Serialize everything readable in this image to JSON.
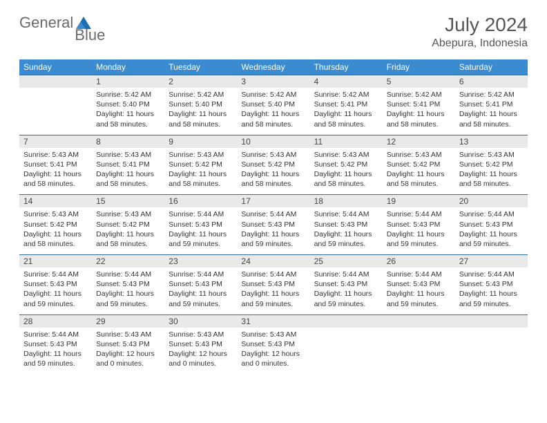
{
  "brand": {
    "word1": "General",
    "word2": "Blue"
  },
  "title": "July 2024",
  "location": "Abepura, Indonesia",
  "colors": {
    "header_bg": "#3a8bd0",
    "header_text": "#ffffff",
    "daynum_bg": "#e9e9e9",
    "row_border": "#2f6aa0",
    "text": "#333333",
    "title_text": "#555555",
    "logo_text": "#6a6a6a",
    "logo_mark": "#1f6fb0"
  },
  "day_headers": [
    "Sunday",
    "Monday",
    "Tuesday",
    "Wednesday",
    "Thursday",
    "Friday",
    "Saturday"
  ],
  "weeks": [
    {
      "cells": [
        {
          "blank": true
        },
        {
          "num": "1",
          "sunrise": "Sunrise: 5:42 AM",
          "sunset": "Sunset: 5:40 PM",
          "daylight": "Daylight: 11 hours and 58 minutes."
        },
        {
          "num": "2",
          "sunrise": "Sunrise: 5:42 AM",
          "sunset": "Sunset: 5:40 PM",
          "daylight": "Daylight: 11 hours and 58 minutes."
        },
        {
          "num": "3",
          "sunrise": "Sunrise: 5:42 AM",
          "sunset": "Sunset: 5:40 PM",
          "daylight": "Daylight: 11 hours and 58 minutes."
        },
        {
          "num": "4",
          "sunrise": "Sunrise: 5:42 AM",
          "sunset": "Sunset: 5:41 PM",
          "daylight": "Daylight: 11 hours and 58 minutes."
        },
        {
          "num": "5",
          "sunrise": "Sunrise: 5:42 AM",
          "sunset": "Sunset: 5:41 PM",
          "daylight": "Daylight: 11 hours and 58 minutes."
        },
        {
          "num": "6",
          "sunrise": "Sunrise: 5:42 AM",
          "sunset": "Sunset: 5:41 PM",
          "daylight": "Daylight: 11 hours and 58 minutes."
        }
      ]
    },
    {
      "cells": [
        {
          "num": "7",
          "sunrise": "Sunrise: 5:43 AM",
          "sunset": "Sunset: 5:41 PM",
          "daylight": "Daylight: 11 hours and 58 minutes."
        },
        {
          "num": "8",
          "sunrise": "Sunrise: 5:43 AM",
          "sunset": "Sunset: 5:41 PM",
          "daylight": "Daylight: 11 hours and 58 minutes."
        },
        {
          "num": "9",
          "sunrise": "Sunrise: 5:43 AM",
          "sunset": "Sunset: 5:42 PM",
          "daylight": "Daylight: 11 hours and 58 minutes."
        },
        {
          "num": "10",
          "sunrise": "Sunrise: 5:43 AM",
          "sunset": "Sunset: 5:42 PM",
          "daylight": "Daylight: 11 hours and 58 minutes."
        },
        {
          "num": "11",
          "sunrise": "Sunrise: 5:43 AM",
          "sunset": "Sunset: 5:42 PM",
          "daylight": "Daylight: 11 hours and 58 minutes."
        },
        {
          "num": "12",
          "sunrise": "Sunrise: 5:43 AM",
          "sunset": "Sunset: 5:42 PM",
          "daylight": "Daylight: 11 hours and 58 minutes."
        },
        {
          "num": "13",
          "sunrise": "Sunrise: 5:43 AM",
          "sunset": "Sunset: 5:42 PM",
          "daylight": "Daylight: 11 hours and 58 minutes."
        }
      ]
    },
    {
      "cells": [
        {
          "num": "14",
          "sunrise": "Sunrise: 5:43 AM",
          "sunset": "Sunset: 5:42 PM",
          "daylight": "Daylight: 11 hours and 58 minutes."
        },
        {
          "num": "15",
          "sunrise": "Sunrise: 5:43 AM",
          "sunset": "Sunset: 5:42 PM",
          "daylight": "Daylight: 11 hours and 58 minutes."
        },
        {
          "num": "16",
          "sunrise": "Sunrise: 5:44 AM",
          "sunset": "Sunset: 5:43 PM",
          "daylight": "Daylight: 11 hours and 59 minutes."
        },
        {
          "num": "17",
          "sunrise": "Sunrise: 5:44 AM",
          "sunset": "Sunset: 5:43 PM",
          "daylight": "Daylight: 11 hours and 59 minutes."
        },
        {
          "num": "18",
          "sunrise": "Sunrise: 5:44 AM",
          "sunset": "Sunset: 5:43 PM",
          "daylight": "Daylight: 11 hours and 59 minutes."
        },
        {
          "num": "19",
          "sunrise": "Sunrise: 5:44 AM",
          "sunset": "Sunset: 5:43 PM",
          "daylight": "Daylight: 11 hours and 59 minutes."
        },
        {
          "num": "20",
          "sunrise": "Sunrise: 5:44 AM",
          "sunset": "Sunset: 5:43 PM",
          "daylight": "Daylight: 11 hours and 59 minutes."
        }
      ]
    },
    {
      "cells": [
        {
          "num": "21",
          "sunrise": "Sunrise: 5:44 AM",
          "sunset": "Sunset: 5:43 PM",
          "daylight": "Daylight: 11 hours and 59 minutes."
        },
        {
          "num": "22",
          "sunrise": "Sunrise: 5:44 AM",
          "sunset": "Sunset: 5:43 PM",
          "daylight": "Daylight: 11 hours and 59 minutes."
        },
        {
          "num": "23",
          "sunrise": "Sunrise: 5:44 AM",
          "sunset": "Sunset: 5:43 PM",
          "daylight": "Daylight: 11 hours and 59 minutes."
        },
        {
          "num": "24",
          "sunrise": "Sunrise: 5:44 AM",
          "sunset": "Sunset: 5:43 PM",
          "daylight": "Daylight: 11 hours and 59 minutes."
        },
        {
          "num": "25",
          "sunrise": "Sunrise: 5:44 AM",
          "sunset": "Sunset: 5:43 PM",
          "daylight": "Daylight: 11 hours and 59 minutes."
        },
        {
          "num": "26",
          "sunrise": "Sunrise: 5:44 AM",
          "sunset": "Sunset: 5:43 PM",
          "daylight": "Daylight: 11 hours and 59 minutes."
        },
        {
          "num": "27",
          "sunrise": "Sunrise: 5:44 AM",
          "sunset": "Sunset: 5:43 PM",
          "daylight": "Daylight: 11 hours and 59 minutes."
        }
      ]
    },
    {
      "cells": [
        {
          "num": "28",
          "sunrise": "Sunrise: 5:44 AM",
          "sunset": "Sunset: 5:43 PM",
          "daylight": "Daylight: 11 hours and 59 minutes."
        },
        {
          "num": "29",
          "sunrise": "Sunrise: 5:43 AM",
          "sunset": "Sunset: 5:43 PM",
          "daylight": "Daylight: 12 hours and 0 minutes."
        },
        {
          "num": "30",
          "sunrise": "Sunrise: 5:43 AM",
          "sunset": "Sunset: 5:43 PM",
          "daylight": "Daylight: 12 hours and 0 minutes."
        },
        {
          "num": "31",
          "sunrise": "Sunrise: 5:43 AM",
          "sunset": "Sunset: 5:43 PM",
          "daylight": "Daylight: 12 hours and 0 minutes."
        },
        {
          "blank": true
        },
        {
          "blank": true
        },
        {
          "blank": true
        }
      ]
    }
  ]
}
